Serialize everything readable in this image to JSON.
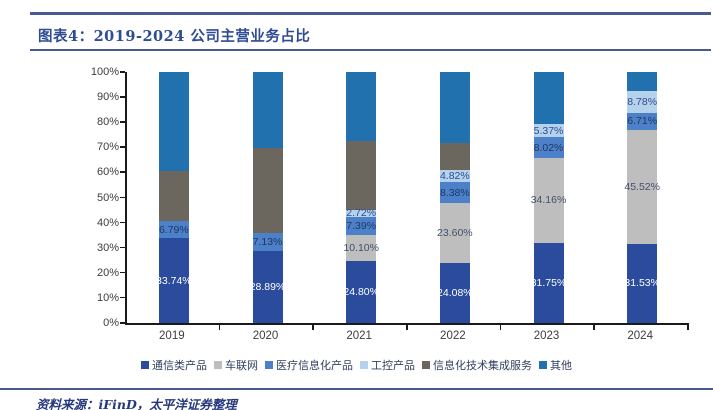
{
  "page": {
    "title": "图表4：2019-2024 公司主营业务占比",
    "source": "资料来源：iFinD，太平洋证券整理"
  },
  "chart_data": {
    "type": "bar",
    "stacked": true,
    "title": "图表4：2019-2024 公司主营业务占比",
    "categories": [
      "2019",
      "2020",
      "2021",
      "2022",
      "2023",
      "2024"
    ],
    "series": [
      {
        "name": "通信类产品",
        "color": "#2b4c9c",
        "label_color": "#ffffff",
        "values": [
          33.74,
          28.89,
          24.8,
          24.08,
          31.75,
          31.53
        ],
        "labels": [
          "33.74%",
          "28.89%",
          "24.80%",
          "24.08%",
          "31.75%",
          "31.53%"
        ]
      },
      {
        "name": "车联网",
        "color": "#bebebe",
        "label_color": "#44506e",
        "values": [
          0,
          0,
          10.1,
          23.6,
          34.16,
          45.52
        ],
        "labels": [
          "",
          "",
          "10.10%",
          "23.60%",
          "34.16%",
          "45.52%"
        ]
      },
      {
        "name": "医疗信息化产品",
        "color": "#4c80c8",
        "label_color": "#1f3864",
        "values": [
          6.79,
          7.13,
          7.39,
          8.38,
          8.02,
          6.71
        ],
        "labels": [
          "6.79%",
          "7.13%",
          "7.39%",
          "8.38%",
          "8.02%",
          "6.71%"
        ]
      },
      {
        "name": "工控产品",
        "color": "#b5d2ec",
        "label_color": "#2e4c94",
        "values": [
          0,
          0,
          2.72,
          4.82,
          5.37,
          8.78
        ],
        "labels": [
          "",
          "",
          "2.72%",
          "4.82%",
          "5.37%",
          "8.78%"
        ]
      },
      {
        "name": "信息化技术集成服务",
        "color": "#6b675f",
        "label_color": "#ffffff",
        "values": [
          19.9,
          33.78,
          27.6,
          10.72,
          0,
          0
        ],
        "labels": [
          "",
          "",
          "",
          "",
          "",
          ""
        ]
      },
      {
        "name": "其他",
        "color": "#2171ae",
        "label_color": "#ffffff",
        "values": [
          39.57,
          30.2,
          27.39,
          28.4,
          20.7,
          7.46
        ],
        "labels": [
          "",
          "",
          "",
          "",
          "",
          ""
        ]
      }
    ],
    "y_ticks": [
      "0%",
      "10%",
      "20%",
      "30%",
      "40%",
      "50%",
      "60%",
      "70%",
      "80%",
      "90%",
      "100%"
    ],
    "ylim": [
      0,
      100
    ],
    "grid": false,
    "legend_position": "bottom",
    "note": "unlabeled segment values estimated from gridlines"
  }
}
